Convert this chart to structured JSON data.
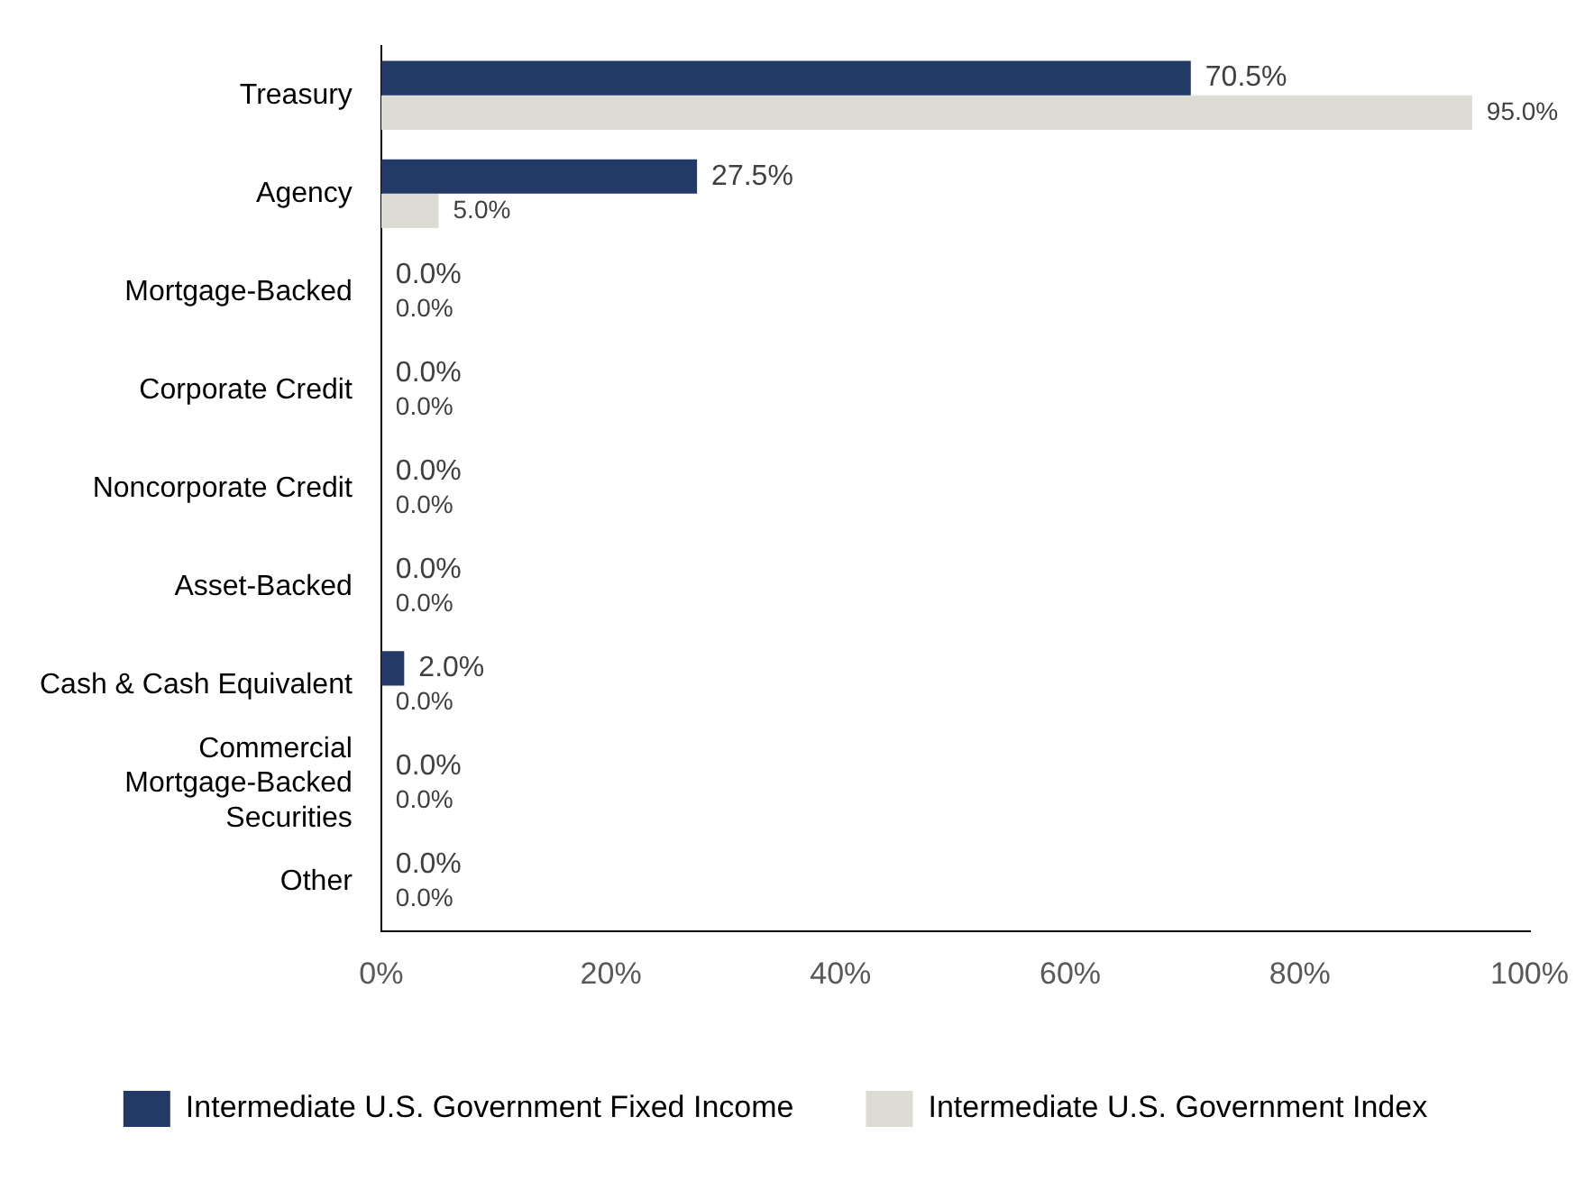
{
  "chart_data": {
    "type": "bar",
    "orientation": "horizontal",
    "categories": [
      "Treasury",
      "Agency",
      "Mortgage-Backed",
      "Corporate Credit",
      "Noncorporate Credit",
      "Asset-Backed",
      "Cash & Cash Equivalent",
      "Commercial Mortgage-Backed Securities",
      "Other"
    ],
    "series": [
      {
        "name": "Intermediate U.S. Government Fixed Income",
        "color": "#243a66",
        "values": [
          70.5,
          27.5,
          0,
          0,
          0,
          0,
          2.0,
          0,
          0
        ],
        "value_labels": [
          "70.5%",
          "27.5%",
          "0.0%",
          "0.0%",
          "0.0%",
          "0.0%",
          "2.0%",
          "0.0%",
          "0.0%"
        ]
      },
      {
        "name": "Intermediate U.S. Government Index",
        "color": "#dcdcd4",
        "values": [
          95.0,
          5.0,
          0,
          0,
          0,
          0,
          0,
          0,
          0
        ],
        "value_labels": [
          "95.0%",
          "5.0%",
          "0.0%",
          "0.0%",
          "0.0%",
          "0.0%",
          "0.0%",
          "0.0%",
          "0.0%"
        ]
      }
    ],
    "xlim": [
      0,
      100
    ],
    "xticks": [
      {
        "value": 0,
        "label": "0%"
      },
      {
        "value": 20,
        "label": "20%"
      },
      {
        "value": 40,
        "label": "40%"
      },
      {
        "value": 60,
        "label": "60%"
      },
      {
        "value": 80,
        "label": "80%"
      },
      {
        "value": 100,
        "label": "100%"
      }
    ],
    "grid": false,
    "legend": "bottom"
  }
}
